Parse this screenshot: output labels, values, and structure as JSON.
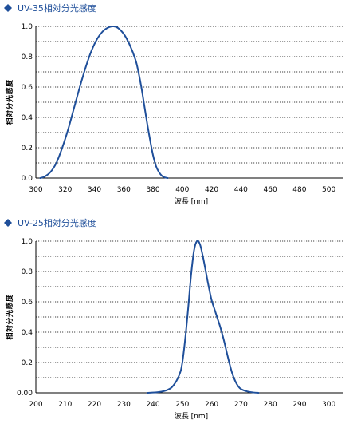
{
  "chart_data": [
    {
      "type": "line",
      "title": "UV-35相対分光感度",
      "xlabel": "波長 [nm]",
      "ylabel": "相対分光感度",
      "xlim": [
        300,
        510
      ],
      "ylim": [
        0,
        1.0
      ],
      "xticks": [
        300,
        320,
        340,
        360,
        380,
        400,
        420,
        440,
        460,
        480,
        500
      ],
      "yticks": [
        0.0,
        0.2,
        0.4,
        0.6,
        0.8,
        1.0
      ],
      "ytick_labels": [
        "0.0",
        "0.2",
        "0.4",
        "0.6",
        "0.8",
        "1.0"
      ],
      "grid": true,
      "series_color": "#1f4f9a",
      "series": [
        {
          "x": [
            303,
            306,
            310,
            314,
            318,
            322,
            326,
            330,
            334,
            338,
            342,
            346,
            350,
            353,
            356,
            360,
            364,
            368,
            370,
            372,
            374,
            376,
            378,
            380,
            382,
            384,
            386,
            388,
            390
          ],
          "y": [
            0.0,
            0.01,
            0.04,
            0.1,
            0.2,
            0.32,
            0.46,
            0.6,
            0.73,
            0.84,
            0.92,
            0.97,
            0.995,
            1.0,
            0.99,
            0.95,
            0.88,
            0.78,
            0.7,
            0.6,
            0.48,
            0.36,
            0.25,
            0.15,
            0.08,
            0.04,
            0.015,
            0.004,
            0.0
          ]
        }
      ]
    },
    {
      "type": "line",
      "title": "UV-25相対分光感度",
      "xlabel": "波長 [nm]",
      "ylabel": "相対分光感度",
      "xlim": [
        200,
        305
      ],
      "ylim": [
        0,
        1.0
      ],
      "xticks": [
        200,
        210,
        220,
        230,
        240,
        250,
        260,
        270,
        280,
        290,
        300
      ],
      "yticks": [
        0.0,
        0.2,
        0.4,
        0.6,
        0.8,
        1.0
      ],
      "ytick_labels": [
        "0.00",
        "0.2",
        "0.4",
        "0.6",
        "0.8",
        "1.0"
      ],
      "grid": true,
      "series_color": "#1f4f9a",
      "series": [
        {
          "x": [
            238,
            242,
            245,
            247,
            249,
            250,
            251,
            252,
            253,
            254,
            255,
            256,
            257,
            258,
            259,
            260,
            261,
            262,
            263,
            264,
            265,
            266,
            267,
            268,
            269,
            270,
            272,
            274,
            276
          ],
          "y": [
            0.0,
            0.005,
            0.02,
            0.05,
            0.12,
            0.2,
            0.36,
            0.56,
            0.78,
            0.94,
            1.0,
            0.98,
            0.9,
            0.8,
            0.7,
            0.61,
            0.55,
            0.49,
            0.43,
            0.36,
            0.28,
            0.2,
            0.13,
            0.08,
            0.045,
            0.025,
            0.01,
            0.003,
            0.0
          ]
        }
      ]
    }
  ]
}
